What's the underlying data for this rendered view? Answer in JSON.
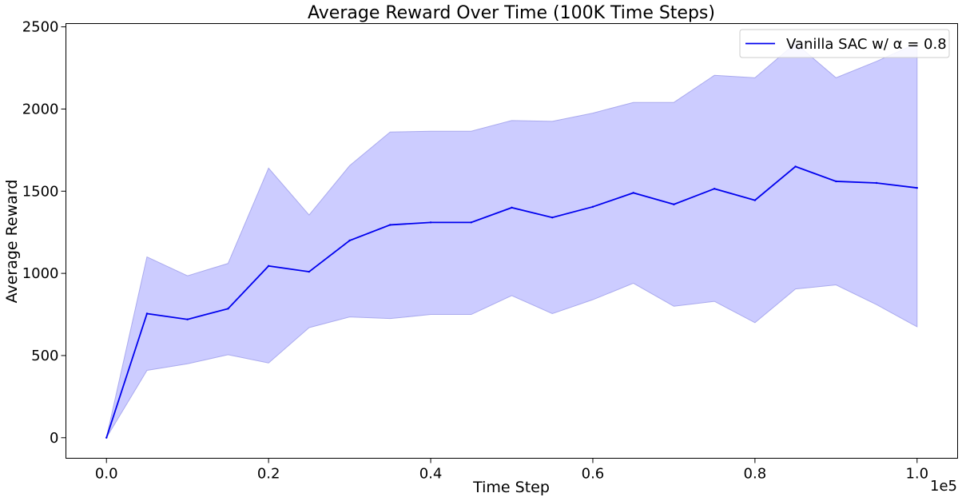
{
  "chart_data": {
    "type": "area",
    "title": "Average Reward Over Time (100K Time Steps)",
    "xlabel": "Time Step",
    "ylabel": "Average Reward",
    "x_offset_label": "1e5",
    "xlim": [
      -5000,
      105000
    ],
    "ylim": [
      -125,
      2520
    ],
    "x_ticks": [
      0,
      20000,
      40000,
      60000,
      80000,
      100000
    ],
    "x_tick_labels": [
      "0.0",
      "0.2",
      "0.4",
      "0.6",
      "0.8",
      "1.0"
    ],
    "y_ticks": [
      0,
      500,
      1000,
      1500,
      2000,
      2500
    ],
    "y_tick_labels": [
      "0",
      "500",
      "1000",
      "1500",
      "2000",
      "2500"
    ],
    "grid": false,
    "legend_position": "top-right",
    "x": [
      0,
      5000,
      10000,
      15000,
      20000,
      25000,
      30000,
      35000,
      40000,
      45000,
      50000,
      55000,
      60000,
      65000,
      70000,
      75000,
      80000,
      85000,
      90000,
      95000,
      100000
    ],
    "series": [
      {
        "name": "Vanilla SAC w/ α = 0.8",
        "color": "#0000ee",
        "band_color": "#ccccff",
        "mean": [
          0,
          755,
          720,
          785,
          1045,
          1010,
          1200,
          1295,
          1310,
          1310,
          1400,
          1340,
          1405,
          1490,
          1420,
          1515,
          1445,
          1650,
          1560,
          1550,
          1520
        ],
        "upper": [
          0,
          1100,
          985,
          1060,
          1640,
          1355,
          1655,
          1860,
          1865,
          1865,
          1930,
          1925,
          1975,
          2040,
          2040,
          2205,
          2190,
          2400,
          2190,
          2290,
          2400
        ],
        "lower": [
          0,
          410,
          450,
          505,
          455,
          670,
          735,
          725,
          750,
          750,
          865,
          755,
          840,
          940,
          800,
          830,
          700,
          905,
          930,
          810,
          675
        ]
      }
    ]
  }
}
